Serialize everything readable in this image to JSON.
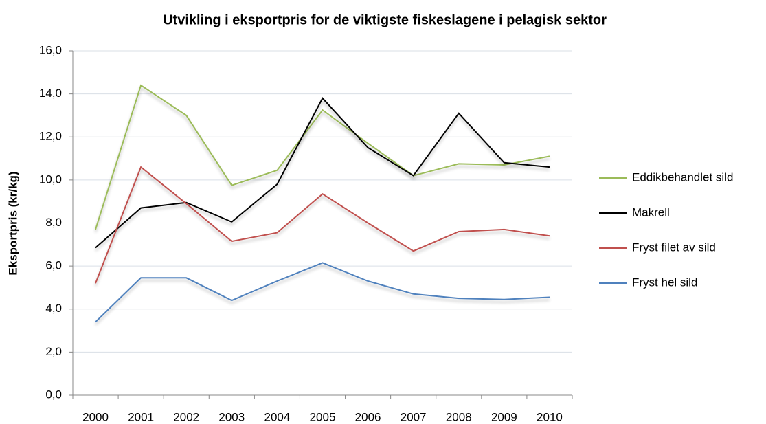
{
  "chart_data": {
    "type": "line",
    "title": "Utvikling i eksportpris for de viktigste fiskeslagene i pelagisk sektor",
    "y_label": "Eksportpris (kr/kg)",
    "categories": [
      "2000",
      "2001",
      "2002",
      "2003",
      "2004",
      "2005",
      "2006",
      "2007",
      "2008",
      "2009",
      "2010"
    ],
    "series": [
      {
        "name": "Eddikbehandlet sild",
        "color": "#9bbb59",
        "values": [
          7.7,
          14.4,
          13.0,
          9.75,
          10.45,
          13.25,
          11.7,
          10.2,
          10.75,
          10.7,
          11.1
        ]
      },
      {
        "name": "Makrell",
        "color": "#000000",
        "values": [
          6.85,
          8.7,
          8.95,
          8.05,
          9.8,
          13.8,
          11.5,
          10.2,
          13.1,
          10.8,
          10.6
        ]
      },
      {
        "name": "Fryst filet av sild",
        "color": "#c0504d",
        "values": [
          5.2,
          10.6,
          8.9,
          7.15,
          7.55,
          9.35,
          8.0,
          6.7,
          7.6,
          7.7,
          7.4
        ]
      },
      {
        "name": "Fryst hel sild",
        "color": "#4f81bd",
        "values": [
          3.4,
          5.45,
          5.45,
          4.4,
          5.3,
          6.15,
          5.3,
          4.7,
          4.5,
          4.45,
          4.55
        ]
      }
    ],
    "ylim": [
      0,
      16
    ],
    "yticks": [
      {
        "value": 0,
        "label": "0,0"
      },
      {
        "value": 2,
        "label": "2,0"
      },
      {
        "value": 4,
        "label": "4,0"
      },
      {
        "value": 6,
        "label": "6,0"
      },
      {
        "value": 8,
        "label": "8,0"
      },
      {
        "value": 10,
        "label": "10,0"
      },
      {
        "value": 12,
        "label": "12,0"
      },
      {
        "value": 14,
        "label": "14,0"
      },
      {
        "value": 16,
        "label": "16,0"
      }
    ],
    "grid": true,
    "legend": "right"
  }
}
